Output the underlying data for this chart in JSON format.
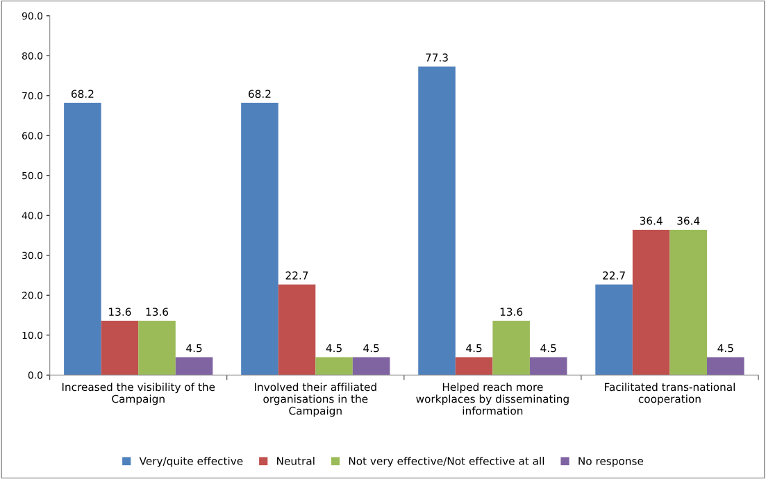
{
  "chart_data": {
    "type": "bar",
    "categories": [
      "Increased the visibility of the\nCampaign",
      "Involved their affiliated\norganisations in the\nCampaign",
      "Helped reach more\nworkplaces by disseminating\ninformation",
      "Facilitated trans-national\ncooperation"
    ],
    "series": [
      {
        "name": "Very/quite effective",
        "color": "#4f81bd",
        "values": [
          68.2,
          68.2,
          77.3,
          22.7
        ]
      },
      {
        "name": "Neutral",
        "color": "#c0504d",
        "values": [
          13.6,
          22.7,
          4.5,
          36.4
        ]
      },
      {
        "name": "Not very effective/Not effective at all",
        "color": "#9bbb59",
        "values": [
          13.6,
          4.5,
          13.6,
          36.4
        ]
      },
      {
        "name": "No response",
        "color": "#8064a2",
        "values": [
          4.5,
          4.5,
          4.5,
          4.5
        ]
      }
    ],
    "ylim": [
      0,
      90
    ],
    "yticks": [
      {
        "value": 0,
        "label": "0.0"
      },
      {
        "value": 10,
        "label": "10.0"
      },
      {
        "value": 20,
        "label": "20.0"
      },
      {
        "value": 30,
        "label": "30.0"
      },
      {
        "value": 40,
        "label": "40.0"
      },
      {
        "value": 50,
        "label": "50.0"
      },
      {
        "value": 60,
        "label": "60.0"
      },
      {
        "value": 70,
        "label": "70.0"
      },
      {
        "value": 80,
        "label": "80.0"
      },
      {
        "value": 90,
        "label": "90.0"
      }
    ],
    "data_labels": true,
    "grid": false,
    "legend": "bottom"
  }
}
